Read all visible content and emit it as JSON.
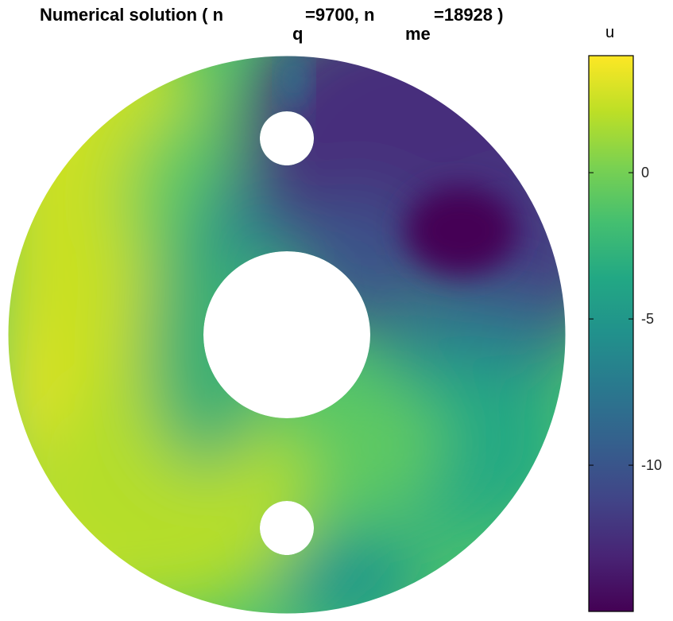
{
  "title": {
    "main": "Numerical solution ( n",
    "sub1": "q",
    "mid": "=9700, n",
    "sub2": "me",
    "end": "=18928 )"
  },
  "chart_data": {
    "type": "heatmap",
    "title": "Numerical solution ( n_q=9700, n_me=18928 )",
    "colorbar": {
      "label": "u",
      "range": [
        -15,
        4
      ],
      "ticks": [
        0,
        -5,
        -10
      ],
      "tick_labels": [
        "0",
        "-5",
        "-10"
      ],
      "colormap": "viridis"
    },
    "domain": "annulus with two circular holes (above and below the center hole)",
    "field_features": [
      {
        "name": "minimum",
        "value": -15,
        "location": "upper-right region"
      },
      {
        "name": "maximum",
        "value": 4,
        "location": "left edge"
      }
    ]
  }
}
